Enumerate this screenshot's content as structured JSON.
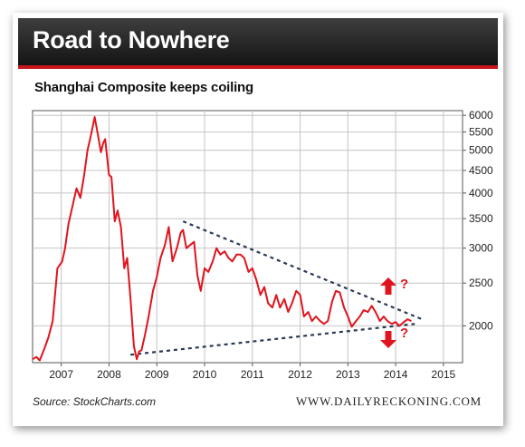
{
  "header": {
    "title": "Road to Nowhere"
  },
  "subtitle": "Shanghai Composite keeps coiling",
  "footer": {
    "source": "Source: StockCharts.com",
    "brand": "WWW.DAILYRECKONING.COM"
  },
  "colors": {
    "series": "#e0141e",
    "accent": "#c8161d",
    "trendline": "#2b3a55"
  },
  "annotations": {
    "up": {
      "arrow": "up-arrow-icon",
      "label": "?"
    },
    "down": {
      "arrow": "down-arrow-icon",
      "label": "?"
    }
  },
  "chart_data": {
    "type": "line",
    "title": "",
    "xlabel": "",
    "ylabel": "",
    "y_scale": "log",
    "xlim": [
      2006.4,
      2015.4
    ],
    "ylim": [
      1650,
      6150
    ],
    "grid": true,
    "legend": "none",
    "x_ticks": [
      2007,
      2008,
      2009,
      2010,
      2011,
      2012,
      2013,
      2014,
      2015
    ],
    "x_tick_labels": [
      "2007",
      "2008",
      "2009",
      "2010",
      "2011",
      "2012",
      "2013",
      "2014",
      "2015"
    ],
    "y_ticks": [
      6000,
      5500,
      5000,
      4500,
      4000,
      3500,
      3000,
      2500,
      2000
    ],
    "y_tick_labels": [
      "6000",
      "5500",
      "5000",
      "4500",
      "4000",
      "3500",
      "3000",
      "2500",
      "2000"
    ],
    "series": [
      {
        "x": [
          2006.4,
          2006.48,
          2006.55,
          2006.65,
          2006.73,
          2006.82,
          2006.92,
          2007.02,
          2007.08,
          2007.15,
          2007.25,
          2007.32,
          2007.4,
          2007.48,
          2007.55,
          2007.62,
          2007.7,
          2007.77,
          2007.83,
          2007.88,
          2007.92,
          2008.0,
          2008.05,
          2008.12,
          2008.18,
          2008.25,
          2008.32,
          2008.38,
          2008.45,
          2008.52,
          2008.58,
          2008.63,
          2008.68,
          2008.75,
          2008.83,
          2008.92,
          2009.0,
          2009.08,
          2009.17,
          2009.25,
          2009.33,
          2009.42,
          2009.5,
          2009.55,
          2009.62,
          2009.7,
          2009.78,
          2009.85,
          2009.92,
          2010.0,
          2010.08,
          2010.17,
          2010.25,
          2010.33,
          2010.42,
          2010.5,
          2010.58,
          2010.67,
          2010.75,
          2010.83,
          2010.92,
          2011.0,
          2011.08,
          2011.17,
          2011.25,
          2011.33,
          2011.42,
          2011.5,
          2011.58,
          2011.67,
          2011.75,
          2011.83,
          2011.92,
          2012.0,
          2012.08,
          2012.17,
          2012.25,
          2012.33,
          2012.42,
          2012.5,
          2012.58,
          2012.67,
          2012.75,
          2012.83,
          2012.92,
          2013.0,
          2013.08,
          2013.17,
          2013.25,
          2013.33,
          2013.42,
          2013.5,
          2013.58,
          2013.67,
          2013.75,
          2013.83,
          2013.92,
          2014.0,
          2014.08,
          2014.17,
          2014.25,
          2014.33
        ],
        "y": [
          1680,
          1700,
          1670,
          1780,
          1880,
          2050,
          2700,
          2800,
          3000,
          3400,
          3800,
          4100,
          3900,
          4400,
          5000,
          5400,
          5950,
          5400,
          4950,
          5200,
          5300,
          4400,
          4350,
          3450,
          3650,
          3350,
          2700,
          2850,
          2300,
          1800,
          1680,
          1750,
          1760,
          1900,
          2100,
          2400,
          2580,
          2850,
          3050,
          3350,
          2800,
          3000,
          3250,
          3300,
          3000,
          3050,
          3100,
          2600,
          2400,
          2700,
          2650,
          2800,
          3000,
          2900,
          2950,
          2850,
          2800,
          2900,
          2900,
          2850,
          2650,
          2700,
          2550,
          2350,
          2450,
          2250,
          2200,
          2350,
          2200,
          2300,
          2150,
          2250,
          2400,
          2350,
          2100,
          2150,
          2050,
          2100,
          2050,
          2020,
          2050,
          2270,
          2400,
          2380,
          2200,
          2100,
          1990,
          2050,
          2100,
          2170,
          2150,
          2220,
          2150,
          2050,
          2100,
          2050,
          2020,
          2040,
          2000,
          2040,
          2070,
          2050
        ]
      }
    ],
    "trendlines": [
      {
        "style": "dotted",
        "from": [
          2009.55,
          3450
        ],
        "to": [
          2014.55,
          2070
        ]
      },
      {
        "style": "dotted",
        "from": [
          2008.45,
          1720
        ],
        "to": [
          2014.4,
          2020
        ]
      }
    ]
  }
}
